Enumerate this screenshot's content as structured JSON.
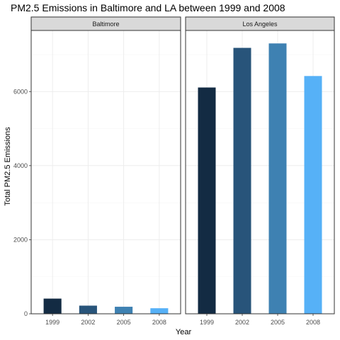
{
  "chart_data": {
    "type": "bar",
    "title": "PM2.5 Emissions in Baltimore and LA between 1999 and 2008",
    "xlabel": "Year",
    "ylabel": "Total PM2.5 Emissions",
    "categories": [
      "1999",
      "2002",
      "2005",
      "2008"
    ],
    "ylim": [
      0,
      7650
    ],
    "yticks": [
      0,
      2000,
      4000,
      6000
    ],
    "grid": true,
    "facets": [
      {
        "name": "Baltimore",
        "values": [
          410,
          220,
          190,
          150
        ]
      },
      {
        "name": "Los Angeles",
        "values": [
          6110,
          7180,
          7300,
          6420
        ]
      }
    ],
    "bar_colors": [
      "#132B43",
      "#28547A",
      "#3E81B2",
      "#56B1F7"
    ]
  }
}
